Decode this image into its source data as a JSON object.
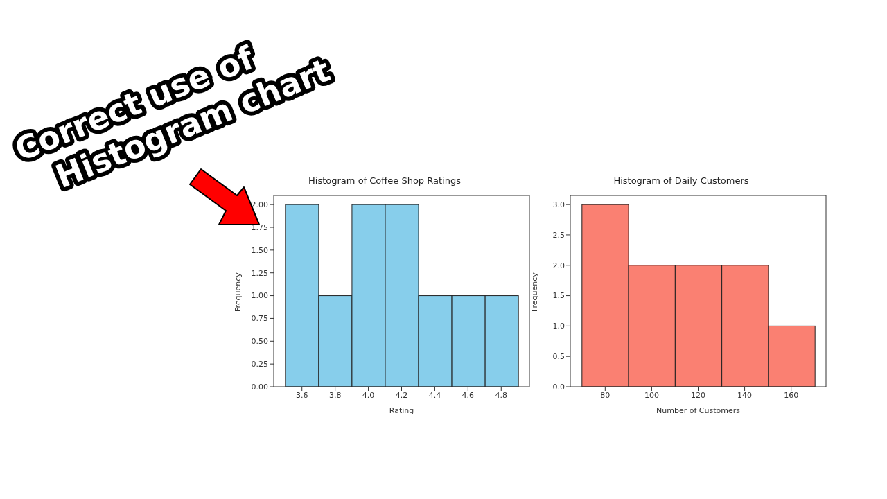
{
  "chart_data": [
    {
      "type": "histogram",
      "title": "Histogram of Coffee Shop Ratings",
      "xlabel": "Rating",
      "ylabel": "Frequency",
      "bins": [
        3.5,
        3.7,
        3.9,
        4.1,
        4.3,
        4.5,
        4.7,
        4.9
      ],
      "values": [
        2,
        1,
        2,
        2,
        1,
        1,
        1
      ],
      "color": "#87ceeb",
      "xlim": [
        3.43,
        4.97
      ],
      "xticks": [
        3.6,
        3.8,
        {
          "value": 4,
          "label": "4.0"
        },
        4.2,
        4.4,
        4.6,
        4.8
      ],
      "ylim": [
        0,
        2.1
      ],
      "yticks": [
        {
          "value": 0,
          "label": "0.00"
        },
        {
          "value": 0.25,
          "label": "0.25"
        },
        {
          "value": 0.5,
          "label": "0.50"
        },
        {
          "value": 0.75,
          "label": "0.75"
        },
        {
          "value": 1,
          "label": "1.00"
        },
        {
          "value": 1.25,
          "label": "1.25"
        },
        {
          "value": 1.5,
          "label": "1.50"
        },
        {
          "value": 1.75,
          "label": "1.75"
        },
        {
          "value": 2,
          "label": "2.00"
        }
      ],
      "grid": false,
      "annotations": [
        "Correct use of",
        "Histogram chart"
      ]
    },
    {
      "type": "histogram",
      "title": "Histogram of Daily Customers",
      "xlabel": "Number of Customers",
      "ylabel": "Frequency",
      "bins": [
        70,
        90,
        110,
        130,
        150,
        170
      ],
      "values": [
        3,
        2,
        2,
        2,
        1
      ],
      "color": "#fa8072",
      "xlim": [
        65,
        175
      ],
      "xticks": [
        80,
        100,
        120,
        140,
        160
      ],
      "ylim": [
        0,
        3.15
      ],
      "yticks": [
        {
          "value": 0,
          "label": "0.0"
        },
        {
          "value": 0.5,
          "label": "0.5"
        },
        {
          "value": 1,
          "label": "1.0"
        },
        {
          "value": 1.5,
          "label": "1.5"
        },
        {
          "value": 2,
          "label": "2.0"
        },
        {
          "value": 2.5,
          "label": "2.5"
        },
        {
          "value": 3,
          "label": "3.0"
        }
      ],
      "grid": false
    }
  ]
}
